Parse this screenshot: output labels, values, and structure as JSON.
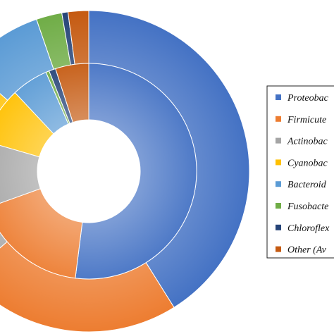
{
  "chart_data": {
    "type": "pie",
    "variant": "double-doughnut",
    "legend_position": "right",
    "categories": [
      "Proteobac",
      "Firmicute",
      "Actinobac",
      "Cyanobac",
      "Bacteroid",
      "Fusobacte",
      "Chloroflex",
      "Other (Av"
    ],
    "colors": [
      "#4472c4",
      "#ed7d31",
      "#a5a5a5",
      "#ffc000",
      "#5b9bd5",
      "#70ad47",
      "#264478",
      "#c55a11"
    ],
    "series": [
      {
        "ring": "outer",
        "values": [
          39.7,
          21.8,
          10.0,
          12.0,
          8.0,
          2.5,
          0.6,
          2.0
        ]
      },
      {
        "ring": "inner",
        "values": [
          52.0,
          17.5,
          10.0,
          8.5,
          5.5,
          0.5,
          1.0,
          5.0
        ]
      }
    ]
  }
}
